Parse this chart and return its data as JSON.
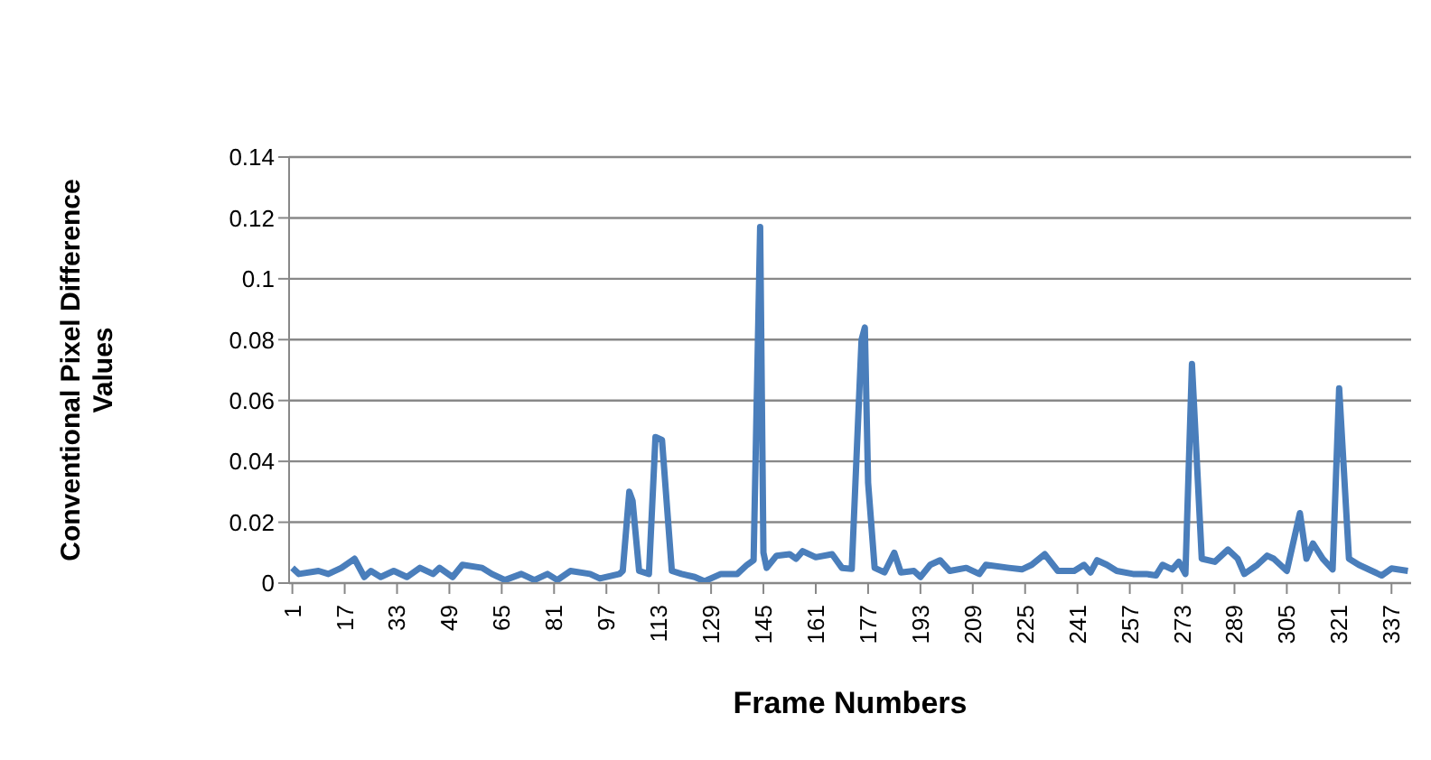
{
  "chart_data": {
    "type": "line",
    "xlabel": "Frame Numbers",
    "ylabel": "Conventional Pixel Difference Values",
    "grid": "y",
    "marker": "none",
    "line_style": "solid",
    "xlim": [
      0,
      343
    ],
    "xticks": [
      1,
      17,
      33,
      49,
      65,
      81,
      97,
      113,
      129,
      145,
      161,
      177,
      193,
      209,
      225,
      241,
      257,
      273,
      289,
      305,
      321,
      337
    ],
    "ylim": [
      0,
      0.14
    ],
    "yticks": [
      0,
      0.02,
      0.04,
      0.06,
      0.08,
      0.1,
      0.12,
      0.14
    ],
    "x": [
      1,
      3,
      9,
      12,
      16,
      20,
      23,
      25,
      28,
      32,
      36,
      40,
      44,
      46,
      50,
      53,
      59,
      62,
      66,
      71,
      75,
      79,
      82,
      86,
      92,
      95,
      101,
      102,
      104,
      105,
      107,
      110,
      112,
      114,
      117,
      120,
      124,
      127,
      132,
      137,
      140,
      142,
      144,
      145,
      146,
      149,
      153,
      155,
      157,
      161,
      166,
      169,
      172,
      175,
      176,
      177,
      179,
      182,
      185,
      187,
      191,
      193,
      196,
      199,
      202,
      207,
      211,
      213,
      220,
      224,
      227,
      231,
      235,
      240,
      243,
      245,
      247,
      250,
      253,
      258,
      262,
      265,
      267,
      270,
      272,
      274,
      276,
      279,
      283,
      287,
      290,
      292,
      296,
      299,
      301,
      305,
      309,
      311,
      313,
      316,
      319,
      321,
      324,
      327,
      331,
      334,
      337,
      342
    ],
    "series": [
      {
        "color": "#4a7ebb",
        "values": [
          0.005,
          0.003,
          0.004,
          0.003,
          0.005,
          0.008,
          0.002,
          0.004,
          0.002,
          0.004,
          0.002,
          0.005,
          0.003,
          0.005,
          0.002,
          0.006,
          0.005,
          0.003,
          0.001,
          0.003,
          0.001,
          0.003,
          0.001,
          0.004,
          0.003,
          0.0015,
          0.003,
          0.004,
          0.03,
          0.027,
          0.004,
          0.003,
          0.048,
          0.047,
          0.004,
          0.003,
          0.002,
          0.0006,
          0.003,
          0.003,
          0.006,
          0.0075,
          0.117,
          0.01,
          0.005,
          0.009,
          0.0095,
          0.008,
          0.0105,
          0.0085,
          0.0095,
          0.005,
          0.0047,
          0.08,
          0.084,
          0.033,
          0.005,
          0.0035,
          0.01,
          0.0035,
          0.004,
          0.002,
          0.006,
          0.0075,
          0.004,
          0.005,
          0.003,
          0.006,
          0.005,
          0.0045,
          0.006,
          0.0095,
          0.004,
          0.004,
          0.006,
          0.0035,
          0.0075,
          0.006,
          0.004,
          0.003,
          0.003,
          0.0025,
          0.006,
          0.0045,
          0.007,
          0.003,
          0.072,
          0.008,
          0.007,
          0.011,
          0.008,
          0.003,
          0.006,
          0.009,
          0.008,
          0.004,
          0.023,
          0.008,
          0.013,
          0.008,
          0.0045,
          0.064,
          0.008,
          0.006,
          0.004,
          0.0025,
          0.0048,
          0.004
        ]
      }
    ]
  }
}
